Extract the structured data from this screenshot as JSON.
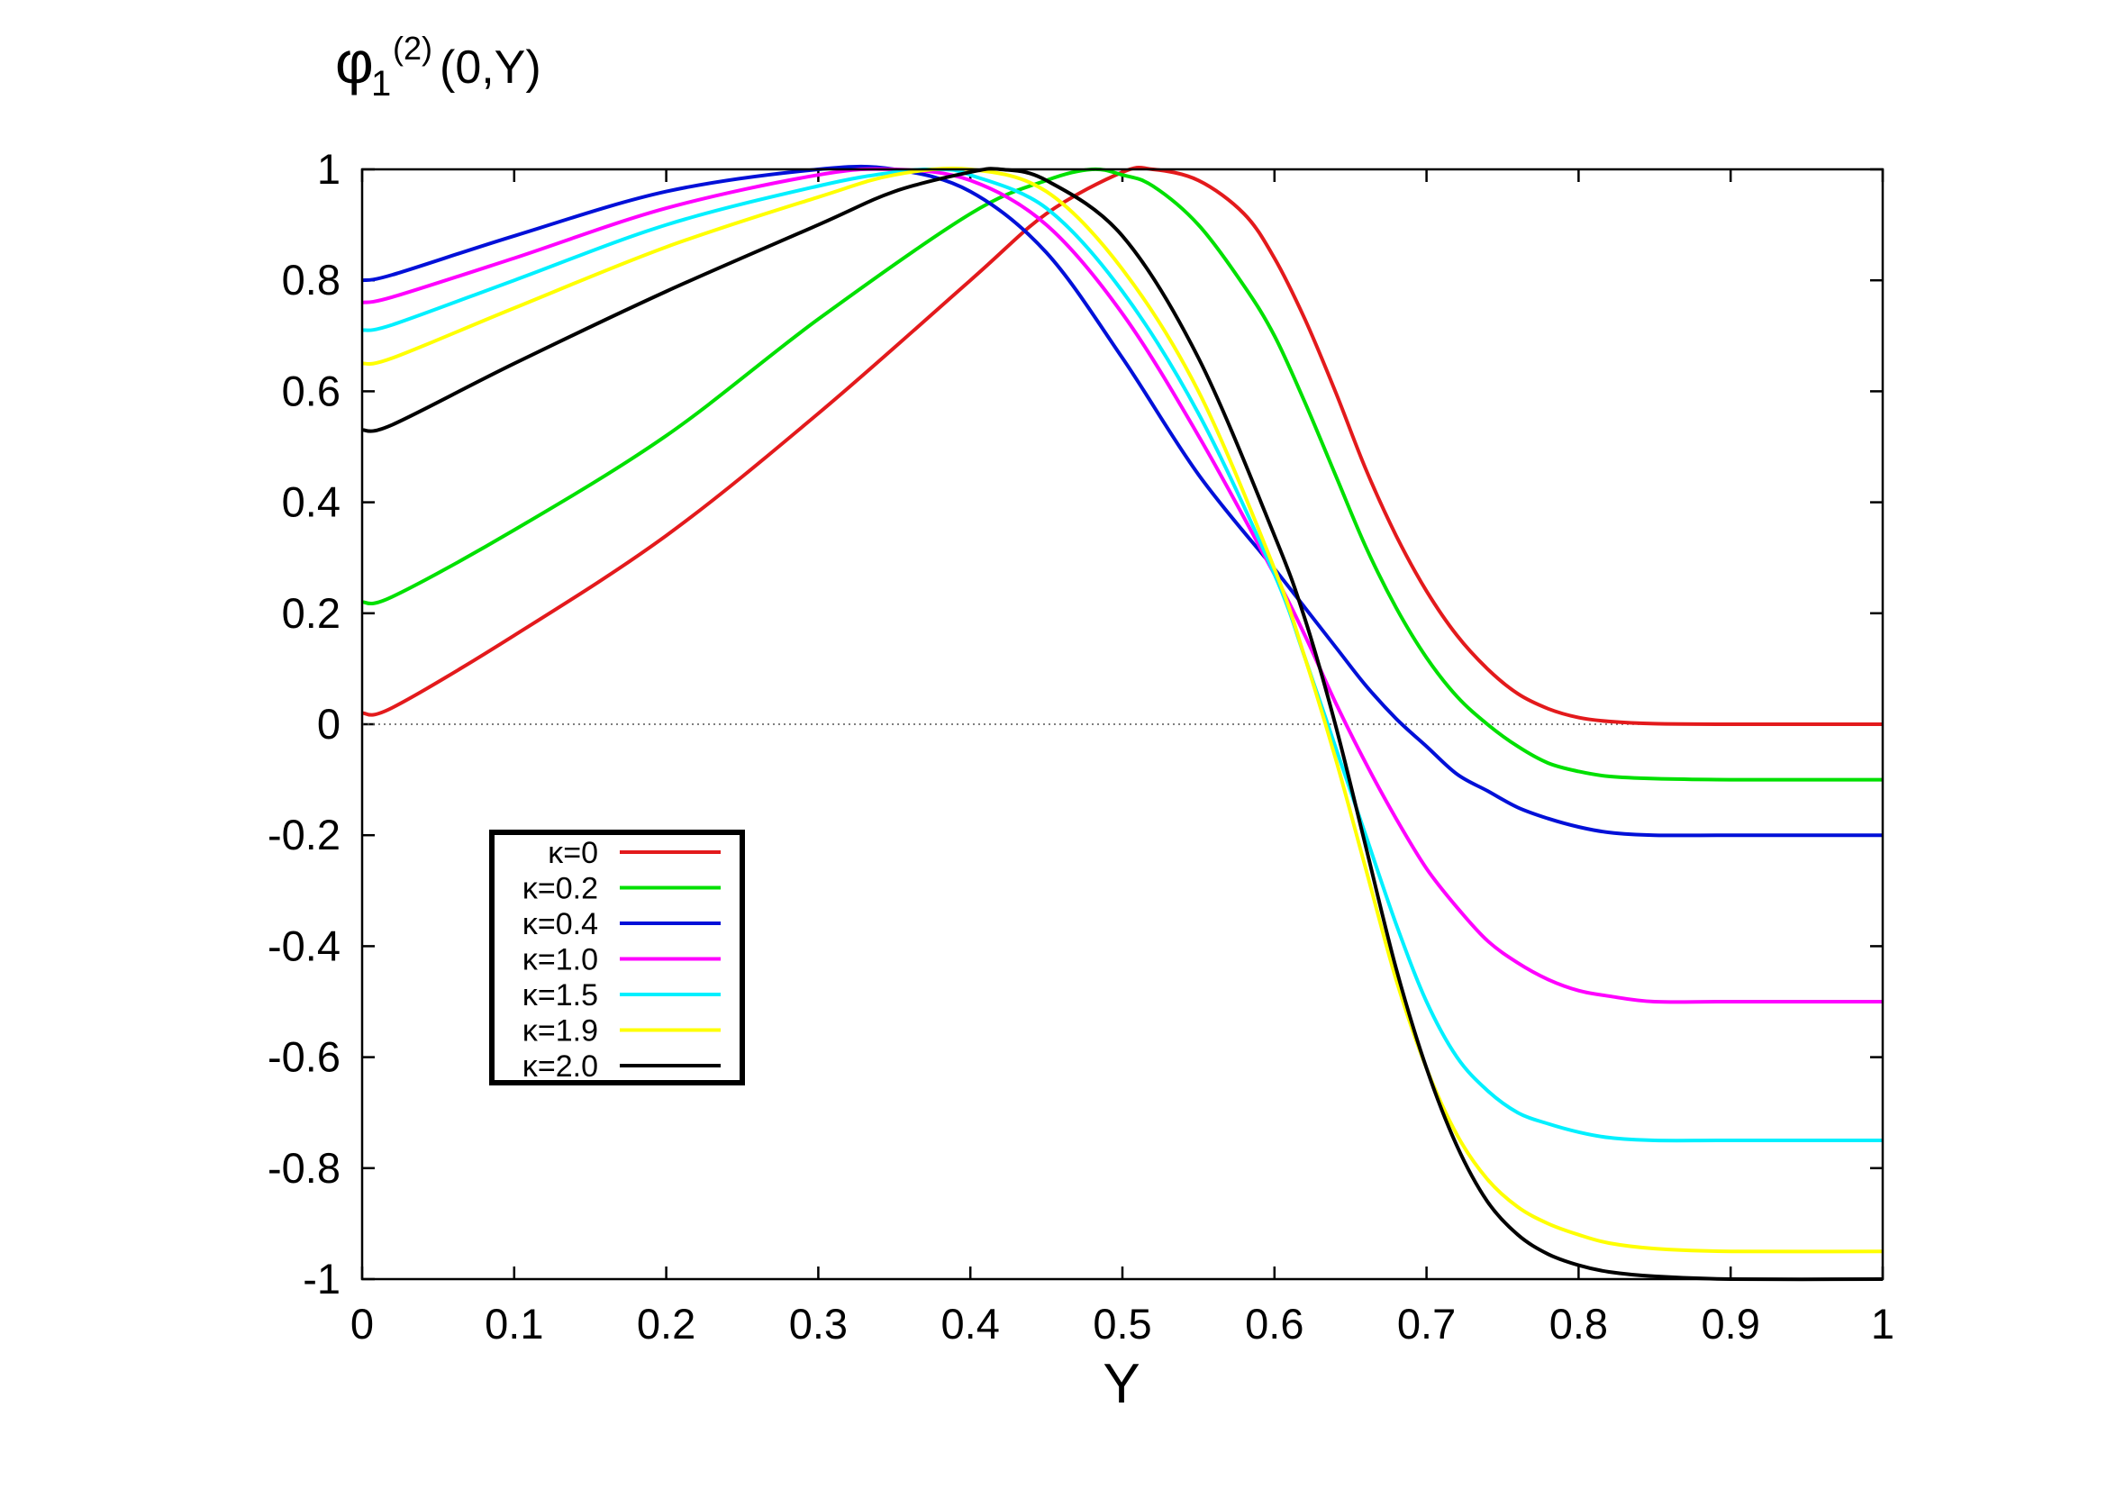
{
  "chart_data": {
    "type": "line",
    "title": "",
    "xlabel": "Y",
    "ylabel": {
      "main": "φ",
      "sub": "1",
      "sup": "(2)",
      "args": "(0,Y)"
    },
    "xlim": [
      0,
      1
    ],
    "ylim": [
      -1,
      1
    ],
    "x_ticks": [
      "0",
      "0.1",
      "0.2",
      "0.3",
      "0.4",
      "0.5",
      "0.6",
      "0.7",
      "0.8",
      "0.9",
      "1"
    ],
    "y_ticks": [
      "1",
      "0.8",
      "0.6",
      "0.4",
      "0.2",
      "0",
      "-0.2",
      "-0.4",
      "-0.6",
      "-0.8",
      "-1"
    ],
    "grid": false,
    "zero_line": true,
    "legend_position": "lower-left",
    "series": [
      {
        "name": "κ=0",
        "color": "#e31a1c",
        "x": [
          0,
          0.02,
          0.1,
          0.2,
          0.3,
          0.4,
          0.45,
          0.5,
          0.52,
          0.55,
          0.58,
          0.6,
          0.62,
          0.64,
          0.66,
          0.68,
          0.7,
          0.72,
          0.74,
          0.76,
          0.78,
          0.8,
          0.82,
          0.85,
          0.9,
          1.0
        ],
        "y": [
          0.02,
          0.03,
          0.16,
          0.34,
          0.56,
          0.8,
          0.92,
          0.995,
          1.0,
          0.98,
          0.92,
          0.84,
          0.73,
          0.6,
          0.46,
          0.34,
          0.24,
          0.16,
          0.1,
          0.055,
          0.028,
          0.012,
          0.005,
          0.001,
          0.0,
          0.0
        ]
      },
      {
        "name": "κ=0.2",
        "color": "#00e000",
        "x": [
          0,
          0.02,
          0.1,
          0.2,
          0.3,
          0.4,
          0.45,
          0.48,
          0.5,
          0.52,
          0.55,
          0.58,
          0.6,
          0.62,
          0.64,
          0.66,
          0.68,
          0.7,
          0.72,
          0.74,
          0.76,
          0.78,
          0.8,
          0.82,
          0.85,
          0.9,
          1.0
        ],
        "y": [
          0.22,
          0.23,
          0.35,
          0.52,
          0.73,
          0.92,
          0.98,
          1.0,
          0.99,
          0.97,
          0.9,
          0.79,
          0.7,
          0.58,
          0.45,
          0.32,
          0.21,
          0.12,
          0.05,
          -0.0,
          -0.04,
          -0.07,
          -0.085,
          -0.094,
          -0.098,
          -0.1,
          -0.1
        ]
      },
      {
        "name": "κ=0.4",
        "color": "#0010d8",
        "x": [
          0,
          0.02,
          0.1,
          0.2,
          0.3,
          0.35,
          0.4,
          0.45,
          0.5,
          0.55,
          0.6,
          0.62,
          0.64,
          0.66,
          0.68,
          0.7,
          0.72,
          0.74,
          0.76,
          0.78,
          0.8,
          0.82,
          0.85,
          0.9,
          1.0
        ],
        "y": [
          0.8,
          0.81,
          0.88,
          0.96,
          1.0,
          1.0,
          0.96,
          0.85,
          0.66,
          0.45,
          0.28,
          0.21,
          0.14,
          0.07,
          0.01,
          -0.04,
          -0.09,
          -0.12,
          -0.15,
          -0.17,
          -0.185,
          -0.195,
          -0.2,
          -0.2,
          -0.2
        ]
      },
      {
        "name": "κ=1.0",
        "color": "#ff00ff",
        "x": [
          0,
          0.02,
          0.1,
          0.2,
          0.3,
          0.35,
          0.4,
          0.45,
          0.5,
          0.55,
          0.6,
          0.62,
          0.64,
          0.66,
          0.68,
          0.7,
          0.72,
          0.74,
          0.76,
          0.78,
          0.8,
          0.82,
          0.85,
          0.9,
          1.0
        ],
        "y": [
          0.76,
          0.77,
          0.84,
          0.93,
          0.99,
          1.0,
          0.98,
          0.9,
          0.74,
          0.52,
          0.27,
          0.16,
          0.04,
          -0.07,
          -0.17,
          -0.26,
          -0.33,
          -0.39,
          -0.43,
          -0.46,
          -0.48,
          -0.49,
          -0.5,
          -0.5,
          -0.5
        ]
      },
      {
        "name": "κ=1.5",
        "color": "#00f0ff",
        "x": [
          0,
          0.02,
          0.1,
          0.2,
          0.3,
          0.35,
          0.38,
          0.4,
          0.45,
          0.5,
          0.55,
          0.6,
          0.62,
          0.64,
          0.66,
          0.68,
          0.7,
          0.72,
          0.74,
          0.76,
          0.78,
          0.8,
          0.82,
          0.85,
          0.9,
          1.0
        ],
        "y": [
          0.71,
          0.72,
          0.8,
          0.9,
          0.97,
          0.995,
          1.0,
          0.99,
          0.93,
          0.78,
          0.56,
          0.27,
          0.12,
          -0.04,
          -0.2,
          -0.36,
          -0.5,
          -0.6,
          -0.66,
          -0.7,
          -0.72,
          -0.735,
          -0.745,
          -0.75,
          -0.75,
          -0.75
        ]
      },
      {
        "name": "κ=1.9",
        "color": "#ffff00",
        "x": [
          0,
          0.02,
          0.1,
          0.2,
          0.3,
          0.35,
          0.4,
          0.45,
          0.5,
          0.55,
          0.6,
          0.62,
          0.64,
          0.66,
          0.68,
          0.7,
          0.72,
          0.74,
          0.76,
          0.78,
          0.8,
          0.82,
          0.85,
          0.9,
          1.0
        ],
        "y": [
          0.65,
          0.66,
          0.75,
          0.86,
          0.95,
          0.99,
          1.0,
          0.96,
          0.82,
          0.6,
          0.28,
          0.12,
          -0.06,
          -0.26,
          -0.46,
          -0.62,
          -0.74,
          -0.82,
          -0.87,
          -0.9,
          -0.92,
          -0.935,
          -0.945,
          -0.95,
          -0.95
        ]
      },
      {
        "name": "κ=2.0",
        "color": "#000000",
        "x": [
          0,
          0.02,
          0.1,
          0.2,
          0.3,
          0.35,
          0.4,
          0.42,
          0.45,
          0.5,
          0.55,
          0.6,
          0.62,
          0.64,
          0.66,
          0.68,
          0.7,
          0.72,
          0.74,
          0.76,
          0.78,
          0.8,
          0.82,
          0.85,
          0.9,
          1.0
        ],
        "y": [
          0.53,
          0.54,
          0.65,
          0.78,
          0.9,
          0.96,
          0.995,
          1.0,
          0.98,
          0.88,
          0.66,
          0.34,
          0.19,
          -0.0,
          -0.22,
          -0.44,
          -0.62,
          -0.76,
          -0.86,
          -0.92,
          -0.955,
          -0.975,
          -0.987,
          -0.995,
          -1.0,
          -1.0
        ]
      }
    ]
  }
}
